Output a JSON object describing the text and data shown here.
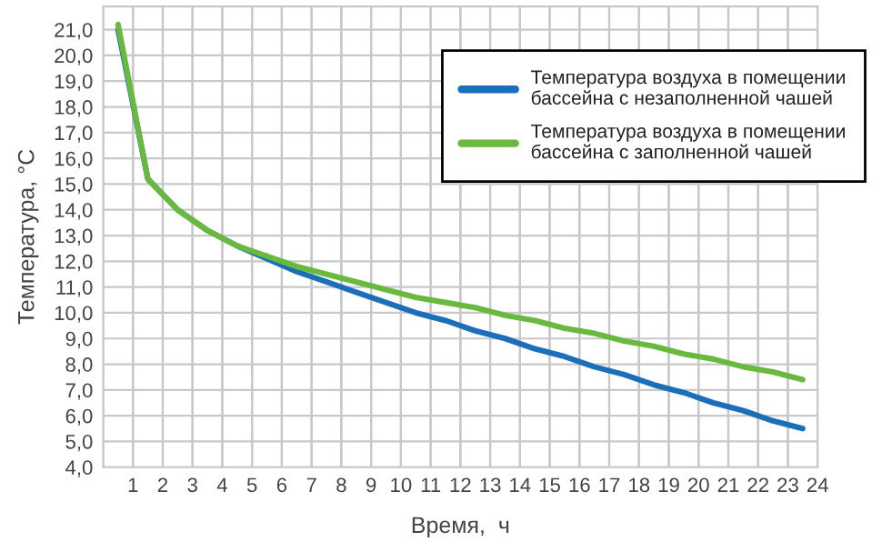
{
  "chart_data": {
    "type": "line",
    "xlabel": "Время,  ч",
    "ylabel": "Температура, °С",
    "x": [
      0.5,
      1.5,
      2.5,
      3.5,
      4.5,
      5.5,
      6.5,
      7.5,
      8.5,
      9.5,
      10.5,
      11.5,
      12.5,
      13.5,
      14.5,
      15.5,
      16.5,
      17.5,
      18.5,
      19.5,
      20.5,
      21.5,
      22.5,
      23.5
    ],
    "series": [
      {
        "name": "Температура воздуха в помещении бассейна с незаполненной чашей",
        "color": "#1a6fb8",
        "values": [
          21.0,
          15.2,
          14.0,
          13.2,
          12.6,
          12.1,
          11.6,
          11.2,
          10.8,
          10.4,
          10.0,
          9.7,
          9.3,
          9.0,
          8.6,
          8.3,
          7.9,
          7.6,
          7.2,
          6.9,
          6.5,
          6.2,
          5.8,
          5.5
        ]
      },
      {
        "name": "Температура воздуха в помещении бассейна с заполненной чашей",
        "color": "#6ab93f",
        "values": [
          21.2,
          15.2,
          14.0,
          13.2,
          12.6,
          12.2,
          11.8,
          11.5,
          11.2,
          10.9,
          10.6,
          10.4,
          10.2,
          9.9,
          9.7,
          9.4,
          9.2,
          8.9,
          8.7,
          8.4,
          8.2,
          7.9,
          7.7,
          7.4
        ]
      }
    ],
    "xlim": [
      0,
      24
    ],
    "xticks": [
      1,
      2,
      3,
      4,
      5,
      6,
      7,
      8,
      9,
      10,
      11,
      12,
      13,
      14,
      15,
      16,
      17,
      18,
      19,
      20,
      21,
      22,
      23,
      24
    ],
    "ylim": [
      4,
      21.9
    ],
    "yticks": [
      {
        "value": 4,
        "label": "4,0"
      },
      {
        "value": 5,
        "label": "5,0"
      },
      {
        "value": 6,
        "label": "6,0"
      },
      {
        "value": 7,
        "label": "7,0"
      },
      {
        "value": 8,
        "label": "8,0"
      },
      {
        "value": 9,
        "label": "9,0"
      },
      {
        "value": 10,
        "label": "10,0"
      },
      {
        "value": 11,
        "label": "11,0"
      },
      {
        "value": 12,
        "label": "12,0"
      },
      {
        "value": 13,
        "label": "13,0"
      },
      {
        "value": 14,
        "label": "14,0"
      },
      {
        "value": 15,
        "label": "15,0"
      },
      {
        "value": 16,
        "label": "16,0"
      },
      {
        "value": 17,
        "label": "17,0"
      },
      {
        "value": 18,
        "label": "18,0"
      },
      {
        "value": 19,
        "label": "19,0"
      },
      {
        "value": 20,
        "label": "20,0"
      },
      {
        "value": 21,
        "label": "21,0"
      }
    ],
    "grid": true,
    "legend": "top right",
    "line_style": "solid",
    "marker": "none"
  }
}
